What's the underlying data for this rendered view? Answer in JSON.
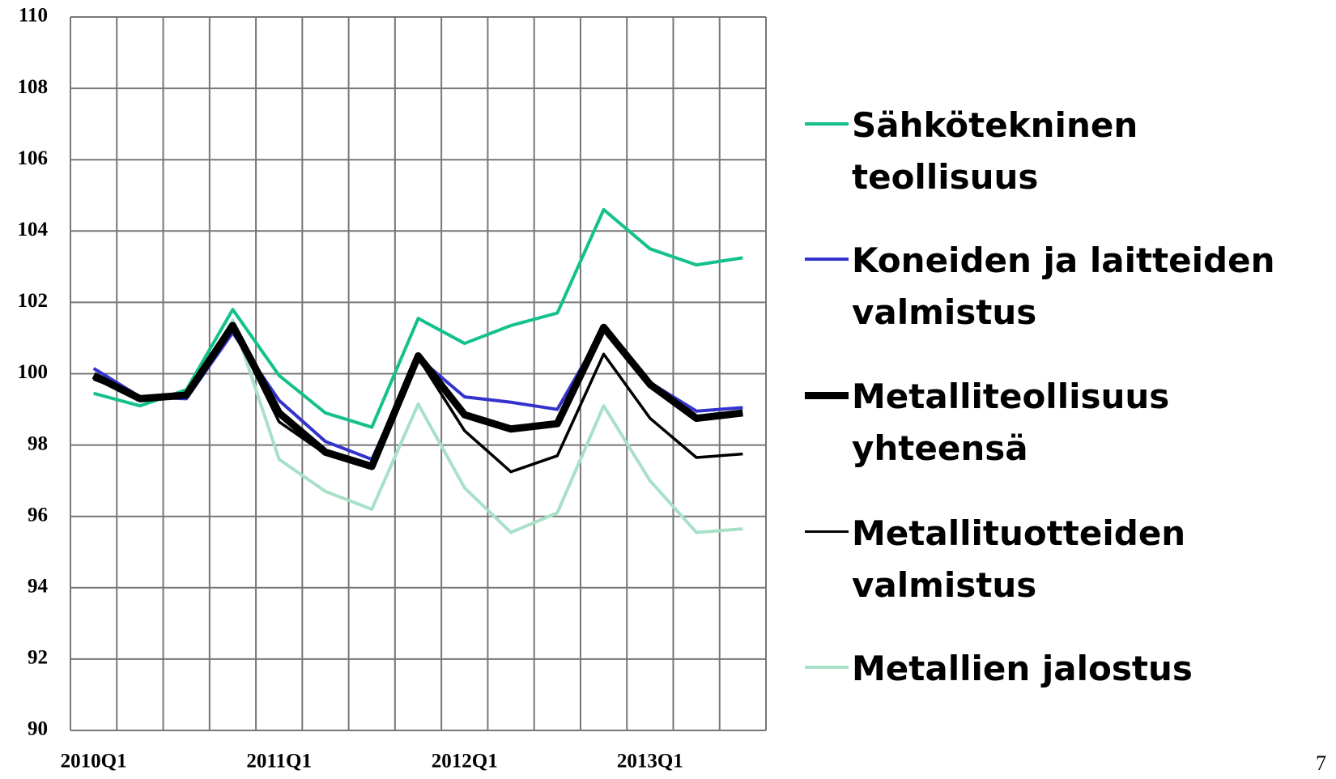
{
  "chart_data": {
    "type": "line",
    "categories": [
      "2010Q1",
      null,
      null,
      null,
      "2011Q1",
      null,
      null,
      null,
      "2012Q1",
      null,
      null,
      null,
      "2013Q1",
      null,
      null
    ],
    "series": [
      {
        "name": "Sähkötekninen teollisuus",
        "color": "#14c08c",
        "line_width": 4,
        "values": [
          99.45,
          99.1,
          99.55,
          101.8,
          99.95,
          98.9,
          98.5,
          101.55,
          100.85,
          101.35,
          101.7,
          104.6,
          103.5,
          103.05,
          103.25
        ]
      },
      {
        "name": "Koneiden ja laitteiden valmistus",
        "color": "#3333cc",
        "line_width": 4,
        "values": [
          100.15,
          99.35,
          99.3,
          101.15,
          99.25,
          98.1,
          97.6,
          100.45,
          99.35,
          99.2,
          99.0,
          101.25,
          99.75,
          98.95,
          99.05
        ]
      },
      {
        "name": "Metalliteollisuus yhteensä",
        "color": "#000000",
        "line_width": 9,
        "values": [
          99.95,
          99.3,
          99.4,
          101.35,
          98.9,
          97.8,
          97.4,
          100.5,
          98.85,
          98.45,
          98.6,
          101.3,
          99.7,
          98.75,
          98.9
        ]
      },
      {
        "name": "Metallituotteiden valmistus",
        "color": "#000000",
        "line_width": 3.5,
        "values": [
          99.85,
          99.35,
          99.45,
          101.3,
          98.65,
          97.75,
          97.45,
          100.45,
          98.4,
          97.25,
          97.7,
          100.55,
          98.75,
          97.65,
          97.75
        ]
      },
      {
        "name": "Metallien jalostus",
        "color": "#a8e0c8",
        "line_width": 4,
        "values": [
          99.85,
          99.35,
          99.35,
          101.5,
          97.6,
          96.7,
          96.2,
          99.15,
          96.8,
          95.55,
          96.1,
          99.1,
          97.0,
          95.55,
          95.65
        ]
      }
    ],
    "ylim": [
      90,
      110
    ],
    "yticks": [
      90,
      92,
      94,
      96,
      98,
      100,
      102,
      104,
      106,
      108,
      110
    ],
    "grid": true,
    "legend": "right"
  },
  "page_number": "7"
}
